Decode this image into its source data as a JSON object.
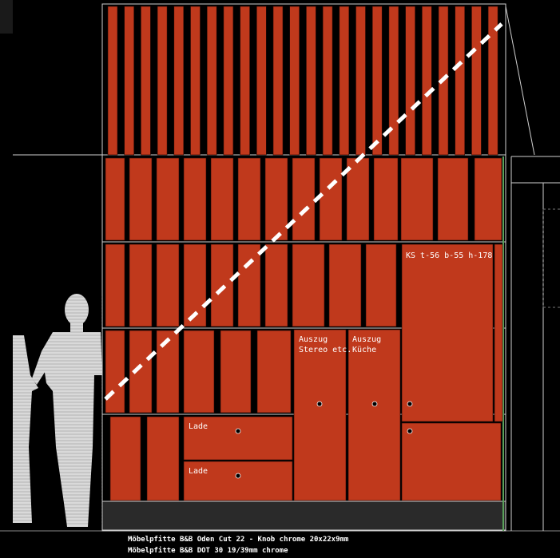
{
  "colors": {
    "background": "#000000",
    "panel": "#c0391c",
    "line": "#d8d8d8",
    "figure": "#d9d9d9",
    "dashed": "#ffffff"
  },
  "labels": {
    "ks_unit": "KS t-56 b-55 h-178",
    "auszug_stereo": "Auszug\nStereo etc.",
    "auszug_kueche": "Auszug\nKüche",
    "lade_top": "Lade",
    "lade_bottom": "Lade"
  },
  "notes": {
    "line1": "Möbelpfitte B&B Oden Cut 22 - Knob chrome 20x22x9mm",
    "line2": "Möbelpfitte B&B DOT 30 19/39mm chrome"
  },
  "icons": [
    "human-silhouette-icon",
    "knob-icon"
  ]
}
